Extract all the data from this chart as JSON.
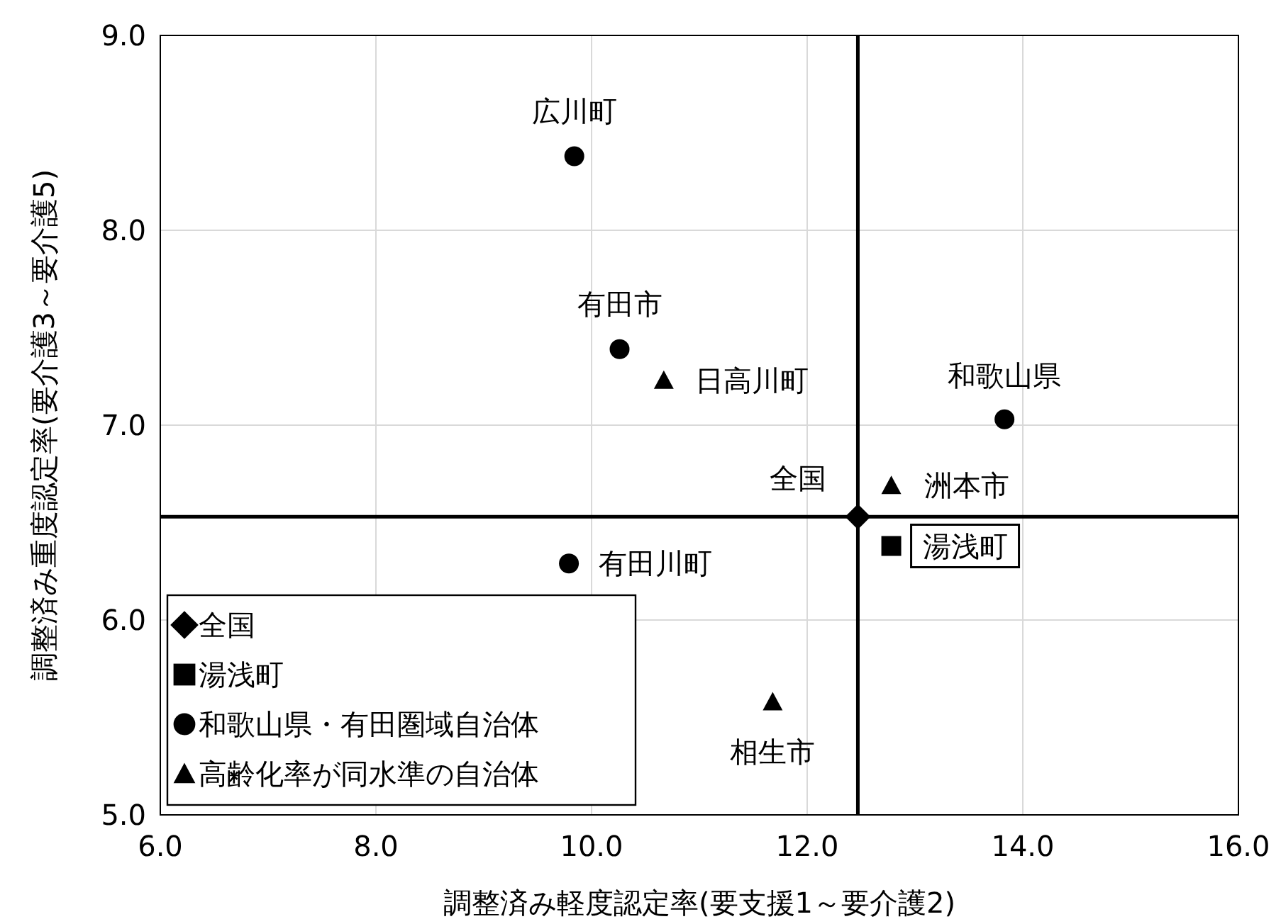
{
  "chart_data": {
    "type": "scatter",
    "xlabel": "調整済み軽度認定率(要支援1～要介護2)",
    "ylabel": "調整済み重度認定率(要介護3～要介護5)",
    "xlim": [
      6,
      16
    ],
    "ylim": [
      5,
      9
    ],
    "xticks": [
      {
        "value": 6,
        "label": "6.0"
      },
      {
        "value": 8,
        "label": "8.0"
      },
      {
        "value": 10,
        "label": "10.0"
      },
      {
        "value": 12,
        "label": "12.0"
      },
      {
        "value": 14,
        "label": "14.0"
      },
      {
        "value": 16,
        "label": "16.0"
      }
    ],
    "yticks": [
      {
        "value": 5,
        "label": "5.0"
      },
      {
        "value": 6,
        "label": "6.0"
      },
      {
        "value": 7,
        "label": "7.0"
      },
      {
        "value": 8,
        "label": "8.0"
      },
      {
        "value": 9,
        "label": "9.0"
      }
    ],
    "grid": true,
    "legend": "bottom left",
    "series": [
      {
        "name": "全国",
        "color": "#000000",
        "marker": "diamond",
        "x": [
          12.47
        ],
        "values": [
          6.53
        ]
      },
      {
        "name": "湯浅町",
        "color": "#000000",
        "marker": "square",
        "x": [
          12.78
        ],
        "values": [
          6.38
        ]
      },
      {
        "name": "和歌山県・有田圏域自治体",
        "color": "#000000",
        "marker": "circle",
        "x": [
          9.84,
          10.26,
          13.83,
          9.79
        ],
        "values": [
          8.38,
          7.39,
          7.03,
          6.29
        ]
      },
      {
        "name": "高齢化率が同水準の自治体",
        "color": "#000000",
        "marker": "triangle",
        "x": [
          10.67,
          12.78,
          11.68
        ],
        "values": [
          7.23,
          6.69,
          5.58
        ]
      }
    ],
    "ref_lines": [
      {
        "axis": "x",
        "value": 12.47,
        "color": "#000000"
      },
      {
        "axis": "y",
        "value": 6.53,
        "color": "#000000"
      }
    ],
    "annotations": [
      {
        "text": "広川町",
        "x": 9.84,
        "y": 8.38
      },
      {
        "text": "有田市",
        "x": 10.26,
        "y": 7.39
      },
      {
        "text": "日高川町",
        "x": 10.67,
        "y": 7.23
      },
      {
        "text": "和歌山県",
        "x": 13.83,
        "y": 7.03
      },
      {
        "text": "全国",
        "x": 12.47,
        "y": 6.53
      },
      {
        "text": "洲本市",
        "x": 12.78,
        "y": 6.69
      },
      {
        "text": "湯浅町",
        "x": 12.78,
        "y": 6.38
      },
      {
        "text": "有田川町",
        "x": 9.79,
        "y": 6.29
      },
      {
        "text": "相生市",
        "x": 11.68,
        "y": 5.58
      }
    ]
  }
}
